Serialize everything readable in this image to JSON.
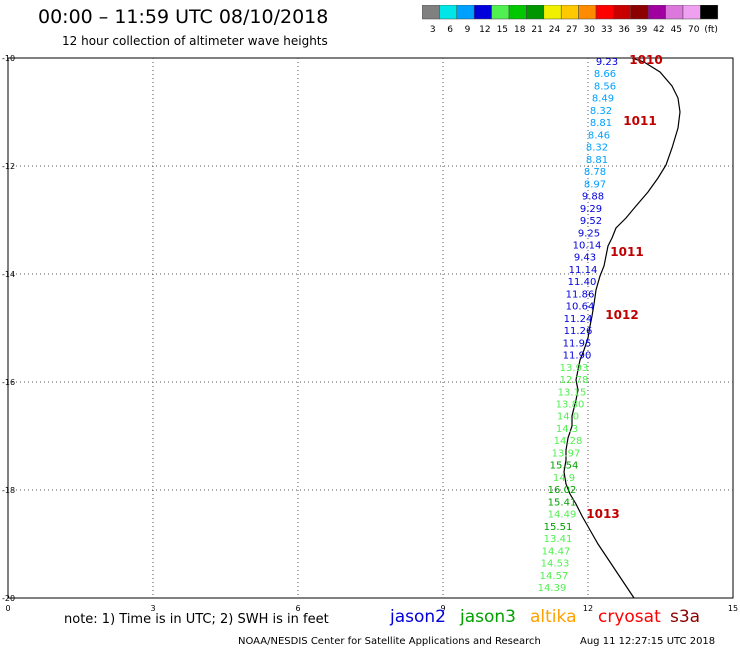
{
  "header": {
    "title": "00:00 – 11:59 UTC 08/10/2018",
    "subtitle": "12 hour collection of altimeter wave heights"
  },
  "colorbar": {
    "colors": [
      "#808080",
      "#00e6e6",
      "#00a0ff",
      "#0000dc",
      "#50f050",
      "#00c800",
      "#009600",
      "#f0f000",
      "#ffc800",
      "#ff8c00",
      "#ff0000",
      "#c80000",
      "#8c0000",
      "#a000a0",
      "#dc78dc",
      "#f0a0f0",
      "#000000"
    ],
    "labels": [
      "3",
      "6",
      "9",
      "12",
      "15",
      "18",
      "21",
      "24",
      "27",
      "30",
      "33",
      "36",
      "39",
      "42",
      "45",
      "70",
      "(ft)"
    ]
  },
  "axes": {
    "lat_ticks": [
      "-10",
      "-12",
      "-14",
      "-16",
      "-18",
      "-20"
    ],
    "lon_ticks": [
      "0",
      "3",
      "6",
      "9",
      "12",
      "15"
    ]
  },
  "pressure_labels": [
    "1010",
    "1011",
    "1011",
    "1012",
    "1013"
  ],
  "wave_heights": [
    {
      "text": "9.23",
      "color": "#0000dc"
    },
    {
      "text": "8.66",
      "color": "#00a0ff"
    },
    {
      "text": "8.56",
      "color": "#00a0ff"
    },
    {
      "text": "8.49",
      "color": "#00a0ff"
    },
    {
      "text": "8.32",
      "color": "#00a0ff"
    },
    {
      "text": "8.81",
      "color": "#00a0ff"
    },
    {
      "text": "8.46",
      "color": "#00a0ff"
    },
    {
      "text": "8.32",
      "color": "#00a0ff"
    },
    {
      "text": "8.81",
      "color": "#00a0ff"
    },
    {
      "text": "8.78",
      "color": "#00a0ff"
    },
    {
      "text": "8.97",
      "color": "#00a0ff"
    },
    {
      "text": "9.88",
      "color": "#0000dc"
    },
    {
      "text": "9.29",
      "color": "#0000dc"
    },
    {
      "text": "9.52",
      "color": "#0000dc"
    },
    {
      "text": "9.25",
      "color": "#0000dc"
    },
    {
      "text": "10.14",
      "color": "#0000dc"
    },
    {
      "text": "9.43",
      "color": "#0000dc"
    },
    {
      "text": "11.14",
      "color": "#0000dc"
    },
    {
      "text": "11.40",
      "color": "#0000dc"
    },
    {
      "text": "11.86",
      "color": "#0000dc"
    },
    {
      "text": "10.64",
      "color": "#0000dc"
    },
    {
      "text": "11.24",
      "color": "#0000dc"
    },
    {
      "text": "11.26",
      "color": "#0000dc"
    },
    {
      "text": "11.95",
      "color": "#0000dc"
    },
    {
      "text": "11.90",
      "color": "#0000dc"
    },
    {
      "text": "13.93",
      "color": "#50f050"
    },
    {
      "text": "12.78",
      "color": "#50f050"
    },
    {
      "text": "13.15",
      "color": "#50f050"
    },
    {
      "text": "13.80",
      "color": "#50f050"
    },
    {
      "text": "14.0",
      "color": "#50f050"
    },
    {
      "text": "14.3",
      "color": "#50f050"
    },
    {
      "text": "14.28",
      "color": "#50f050"
    },
    {
      "text": "13.97",
      "color": "#50f050"
    },
    {
      "text": "15.54",
      "color": "#00a000"
    },
    {
      "text": "14.9",
      "color": "#50f050"
    },
    {
      "text": "16.02",
      "color": "#00a000"
    },
    {
      "text": "15.41",
      "color": "#00a000"
    },
    {
      "text": "14.49",
      "color": "#50f050"
    },
    {
      "text": "15.51",
      "color": "#00a000"
    },
    {
      "text": "13.41",
      "color": "#50f050"
    },
    {
      "text": "14.47",
      "color": "#50f050"
    },
    {
      "text": "14.53",
      "color": "#50f050"
    },
    {
      "text": "14.57",
      "color": "#50f050"
    },
    {
      "text": "14.39",
      "color": "#50f050"
    }
  ],
  "note": "note: 1) Time is in UTC; 2) SWH is in feet",
  "legend": [
    {
      "label": "jason2",
      "color": "#0000dc"
    },
    {
      "label": "jason3",
      "color": "#00a000"
    },
    {
      "label": "altika",
      "color": "#ffa000"
    },
    {
      "label": "cryosat",
      "color": "#ff0000"
    },
    {
      "label": "s3a",
      "color": "#8c0000"
    }
  ],
  "footer": {
    "credit": "NOAA/NESDIS Center for Satellite Applications and Research",
    "timestamp": "Aug 11 12:27:15 UTC 2018"
  }
}
